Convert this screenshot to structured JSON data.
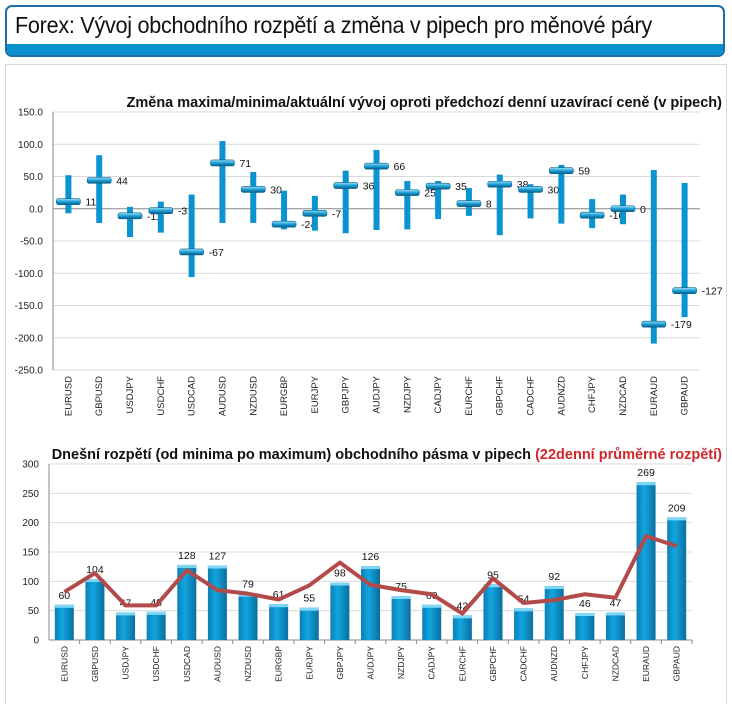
{
  "header": {
    "title": "Forex: Vývoj obchodního rozpětí a změna v pipech pro měnové páry"
  },
  "colors": {
    "bar": "#0a93d1",
    "line": "#b34a4a",
    "title_accent": "#d0262b",
    "header_border": "#1a6fa8"
  },
  "chart_data": [
    {
      "type": "range-bar",
      "title": "Změna maxima/minima/aktuální vývoj oproti předchozí denní uzavírací ceně (v pipech)",
      "ylim": [
        -250,
        150
      ],
      "yticks": [
        "150.0",
        "100.0",
        "50.0",
        "0.0",
        "-50.0",
        "-100.0",
        "-150.0",
        "-200.0",
        "-250.0"
      ],
      "grid": true,
      "categories": [
        "EURUSD",
        "GBPUSD",
        "USDJPY",
        "USDCHF",
        "USDCAD",
        "AUDUSD",
        "NZDUSD",
        "EURGBP",
        "EURJPY",
        "GBPJPY",
        "AUDJPY",
        "NZDJPY",
        "CADJPY",
        "EURCHF",
        "GBPCHF",
        "CADCHF",
        "AUDNZD",
        "CHFJPY",
        "NZDCAD",
        "EURAUD",
        "GBPAUD"
      ],
      "high": [
        52,
        83,
        3,
        11,
        22,
        105,
        57,
        28,
        20,
        59,
        91,
        43,
        43,
        32,
        53,
        38,
        68,
        15,
        22,
        60,
        40
      ],
      "low": [
        -7,
        -22,
        -44,
        -37,
        -106,
        -22,
        -22,
        -32,
        -34,
        -38,
        -33,
        -32,
        -16,
        -11,
        -41,
        -15,
        -23,
        -30,
        -24,
        -209,
        -168
      ],
      "current": [
        11,
        44,
        -11,
        -3,
        -67,
        71,
        30,
        -24,
        -7,
        36,
        66,
        25,
        35,
        8,
        38,
        30,
        59,
        -10,
        0,
        -179,
        -127
      ],
      "current_labels": [
        "11",
        "44",
        "-11",
        "-3",
        "-67",
        "71",
        "30",
        "-24",
        "-7",
        "36",
        "66",
        "25",
        "35",
        "8",
        "38",
        "30",
        "59",
        "-10",
        "0",
        "-179",
        "-127"
      ]
    },
    {
      "type": "bar+line",
      "title": "Dnešní rozpětí (od minima po maximum) obchodního pásma v pipech",
      "title_accent": "(22denní průměrné rozpětí)",
      "ylim": [
        0,
        300
      ],
      "yticks": [
        "300",
        "250",
        "200",
        "150",
        "100",
        "50",
        "0"
      ],
      "grid": true,
      "categories": [
        "EURUSD",
        "GBPUSD",
        "USDJPY",
        "USDCHF",
        "USDCAD",
        "AUDUSD",
        "NZDUSD",
        "EURGBP",
        "EURJPY",
        "GBPJPY",
        "AUDJPY",
        "NZDJPY",
        "CADJPY",
        "EURCHF",
        "GBPCHF",
        "CADCHF",
        "AUDNZD",
        "CHFJPY",
        "NZDCAD",
        "EURAUD",
        "GBPAUD"
      ],
      "series": [
        {
          "type": "bar",
          "values": [
            60,
            104,
            47,
            48,
            128,
            127,
            79,
            61,
            55,
            98,
            126,
            75,
            60,
            42,
            95,
            54,
            92,
            46,
            47,
            269,
            209
          ],
          "labels": [
            "60",
            "104",
            "47",
            "48",
            "128",
            "127",
            "79",
            "61",
            "55",
            "98",
            "126",
            "75",
            "60",
            "42",
            "95",
            "54",
            "92",
            "46",
            "47",
            "269",
            "209"
          ]
        },
        {
          "type": "line",
          "name": "(22denní průměrné rozpětí)",
          "values": [
            82,
            114,
            59,
            59,
            119,
            85,
            79,
            69,
            93,
            132,
            94,
            85,
            78,
            45,
            105,
            63,
            68,
            78,
            72,
            177,
            160
          ]
        }
      ]
    }
  ]
}
